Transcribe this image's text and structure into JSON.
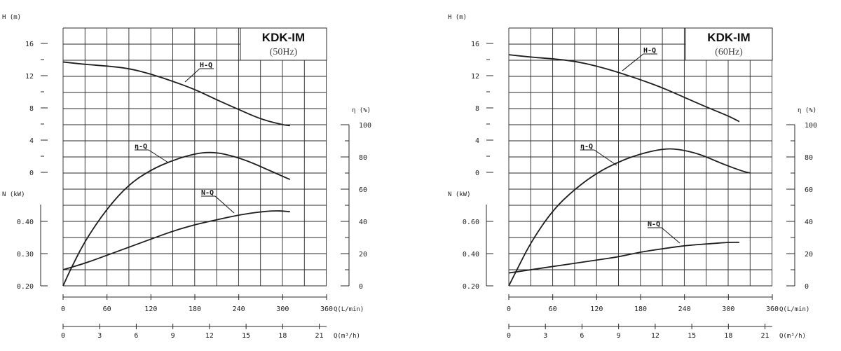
{
  "chart_data": [
    {
      "type": "line",
      "title": "KDK-IM",
      "subtitle": "(50Hz)",
      "x_label": "Q(L/min)",
      "x_ticks": [
        "0",
        "60",
        "120",
        "180",
        "240",
        "300",
        "360"
      ],
      "x2_label": "Q(m³/h)",
      "x2_ticks": [
        "0",
        "3",
        "6",
        "9",
        "12",
        "15",
        "18",
        "21"
      ],
      "h_label": "H (m)",
      "h_ticks": [
        "0",
        "4",
        "8",
        "12",
        "16"
      ],
      "eff_label": "η (%)",
      "eff_ticks": [
        "0",
        "20",
        "40",
        "60",
        "80",
        "100"
      ],
      "n_label": "N (kW)",
      "n_ticks": [
        "0.20",
        "0.30",
        "0.40"
      ],
      "series": [
        {
          "name": "H-Q",
          "x": [
            0,
            30,
            60,
            90,
            120,
            150,
            180,
            210,
            240,
            270,
            300,
            310
          ],
          "y": [
            13.7,
            13.4,
            13.2,
            12.9,
            12.2,
            11.3,
            10.3,
            9.0,
            7.8,
            6.6,
            5.9,
            5.8
          ]
        },
        {
          "name": "η-Q",
          "x": [
            0,
            10,
            30,
            60,
            90,
            120,
            150,
            180,
            200,
            220,
            250,
            280,
            300,
            310
          ],
          "y": [
            0,
            10,
            28,
            48,
            63,
            72,
            78,
            82,
            83,
            82,
            78,
            72,
            68,
            66
          ]
        },
        {
          "name": "N-Q",
          "x": [
            0,
            30,
            60,
            90,
            120,
            150,
            180,
            210,
            240,
            270,
            290,
            300,
            310
          ],
          "y": [
            0.25,
            0.27,
            0.295,
            0.32,
            0.345,
            0.37,
            0.39,
            0.405,
            0.42,
            0.43,
            0.433,
            0.432,
            0.43
          ]
        }
      ]
    },
    {
      "type": "line",
      "title": "KDK-IM",
      "subtitle": "(60Hz)",
      "x_label": "Q(L/min)",
      "x_ticks": [
        "0",
        "60",
        "120",
        "180",
        "240",
        "300",
        "360"
      ],
      "x2_label": "Q(m³/h)",
      "x2_ticks": [
        "0",
        "3",
        "6",
        "9",
        "12",
        "15",
        "18",
        "21"
      ],
      "h_label": "H (m)",
      "h_ticks": [
        "0",
        "4",
        "8",
        "12",
        "16"
      ],
      "eff_label": "η (%)",
      "eff_ticks": [
        "0",
        "20",
        "40",
        "60",
        "80",
        "100"
      ],
      "n_label": "N (kW)",
      "n_ticks": [
        "0.20",
        "0.40",
        "0.60"
      ],
      "series": [
        {
          "name": "H-Q",
          "x": [
            0,
            30,
            60,
            90,
            120,
            150,
            180,
            210,
            240,
            270,
            300,
            315
          ],
          "y": [
            14.6,
            14.3,
            14.1,
            13.8,
            13.2,
            12.4,
            11.5,
            10.5,
            9.3,
            8.1,
            7.0,
            6.3
          ]
        },
        {
          "name": "η-Q",
          "x": [
            0,
            10,
            30,
            60,
            90,
            120,
            150,
            180,
            210,
            230,
            260,
            290,
            320,
            330
          ],
          "y": [
            0,
            9,
            27,
            47,
            60,
            70,
            77,
            82,
            85,
            85,
            82,
            76,
            71,
            70
          ]
        },
        {
          "name": "N-Q",
          "x": [
            0,
            30,
            60,
            90,
            120,
            150,
            180,
            210,
            240,
            270,
            300,
            315
          ],
          "y": [
            0.28,
            0.3,
            0.32,
            0.34,
            0.36,
            0.38,
            0.41,
            0.43,
            0.45,
            0.46,
            0.47,
            0.47
          ]
        }
      ]
    }
  ]
}
